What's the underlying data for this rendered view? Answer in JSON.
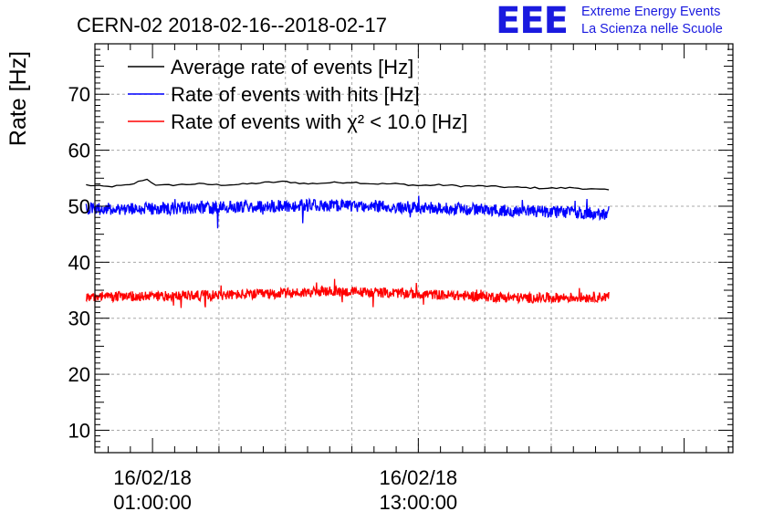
{
  "logo": {
    "letters": "EEE",
    "line1": "Extreme Energy Events",
    "line2": "La Scienza nelle Scuole",
    "color": "#1a1adf"
  },
  "chart_data": {
    "type": "line",
    "title": "CERN-02 2018-02-16--2018-02-17",
    "ylabel": "Rate [Hz]",
    "xlabel": "",
    "x_unit": "hours since 16/02/18 00:00:00",
    "xlim": [
      -1.6,
      27.2
    ],
    "ylim": [
      6,
      79
    ],
    "x_ticks": [
      {
        "x": 1,
        "date": "16/02/18",
        "time": "01:00:00"
      },
      {
        "x": 13,
        "date": "16/02/18",
        "time": "13:00:00"
      }
    ],
    "y_ticks": [
      10,
      20,
      30,
      40,
      50,
      60,
      70
    ],
    "grid": true,
    "legend_position": "top-left",
    "series": [
      {
        "name": "Average rate of events [Hz]",
        "color": "#000000",
        "x_start": -2.0,
        "x_end": 21.6,
        "noise": 0.3,
        "style": "smooth",
        "anchors": [
          [
            -2.0,
            53.8
          ],
          [
            -1.5,
            53.6
          ],
          [
            -1.0,
            53.5
          ],
          [
            0.0,
            53.8
          ],
          [
            0.7,
            54.9
          ],
          [
            1.2,
            53.7
          ],
          [
            2.0,
            53.8
          ],
          [
            3.0,
            54.0
          ],
          [
            4.0,
            53.8
          ],
          [
            5.0,
            53.9
          ],
          [
            6.0,
            54.2
          ],
          [
            7.0,
            54.4
          ],
          [
            8.0,
            54.0
          ],
          [
            9.0,
            54.2
          ],
          [
            10.0,
            54.3
          ],
          [
            11.0,
            54.0
          ],
          [
            12.0,
            54.0
          ],
          [
            13.0,
            53.7
          ],
          [
            14.0,
            53.8
          ],
          [
            15.0,
            53.6
          ],
          [
            16.0,
            53.6
          ],
          [
            17.0,
            53.4
          ],
          [
            18.0,
            53.3
          ],
          [
            19.0,
            53.2
          ],
          [
            20.0,
            53.3
          ],
          [
            21.0,
            53.0
          ],
          [
            21.6,
            52.9
          ]
        ]
      },
      {
        "name": "Rate of events with hits [Hz]",
        "color": "#0000ff",
        "x_start": -2.0,
        "x_end": 21.6,
        "noise": 1.1,
        "style": "noisy",
        "anchors": [
          [
            -2.0,
            49.5
          ],
          [
            2.0,
            49.6
          ],
          [
            6.0,
            50.0
          ],
          [
            9.0,
            50.2
          ],
          [
            12.0,
            49.9
          ],
          [
            15.0,
            49.5
          ],
          [
            18.0,
            49.2
          ],
          [
            21.6,
            48.6
          ]
        ]
      },
      {
        "name": "Rate of events with χ² < 10.0 [Hz]",
        "color": "#ff0000",
        "x_start": -2.0,
        "x_end": 21.6,
        "noise": 0.9,
        "style": "noisy",
        "anchors": [
          [
            -2.0,
            33.8
          ],
          [
            2.0,
            34.0
          ],
          [
            6.0,
            34.3
          ],
          [
            9.0,
            34.8
          ],
          [
            12.0,
            34.5
          ],
          [
            15.0,
            34.0
          ],
          [
            18.0,
            33.6
          ],
          [
            21.6,
            33.8
          ]
        ]
      }
    ]
  }
}
